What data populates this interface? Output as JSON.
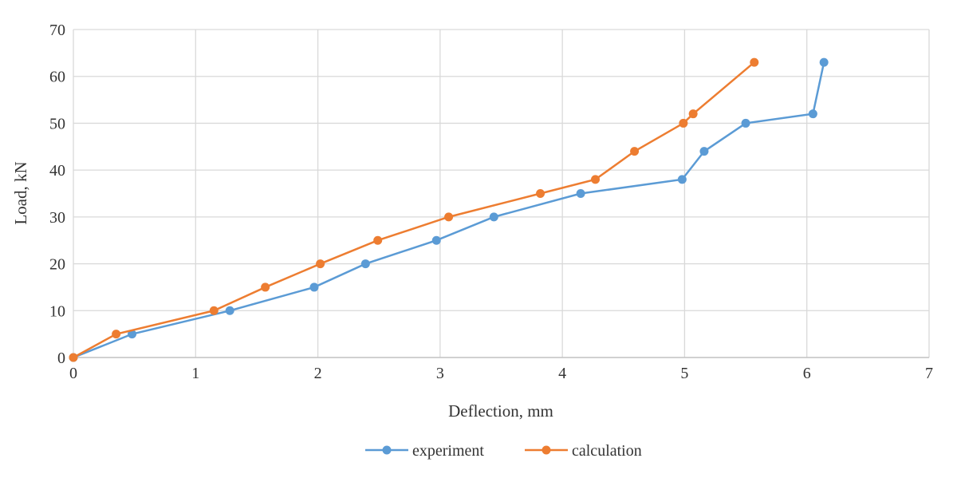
{
  "chart_data": {
    "type": "line",
    "title": "",
    "xlabel": "Deflection, mm",
    "ylabel": "Load, kN",
    "xlim": [
      0,
      7
    ],
    "ylim": [
      0,
      70
    ],
    "xticks": [
      "0",
      "1",
      "2",
      "3",
      "4",
      "5",
      "6",
      "7"
    ],
    "yticks": [
      "0",
      "10",
      "20",
      "30",
      "40",
      "50",
      "60",
      "70"
    ],
    "grid": true,
    "legend_position": "bottom-center",
    "series": [
      {
        "name": "experiment",
        "color": "#5B9BD5",
        "x": [
          0,
          0.48,
          1.28,
          1.97,
          2.39,
          2.97,
          3.44,
          4.15,
          4.98,
          5.16,
          5.5,
          6.05,
          6.14
        ],
        "y": [
          0,
          5,
          10,
          15,
          20,
          25,
          30,
          35,
          38,
          44,
          50,
          52,
          63
        ]
      },
      {
        "name": "calculation",
        "color": "#ED7D31",
        "x": [
          0,
          0.35,
          1.15,
          1.57,
          2.02,
          2.49,
          3.07,
          3.82,
          4.27,
          4.59,
          4.99,
          5.07,
          5.57
        ],
        "y": [
          0,
          5,
          10,
          15,
          20,
          25,
          30,
          35,
          38,
          44,
          50,
          52,
          63
        ]
      }
    ]
  }
}
